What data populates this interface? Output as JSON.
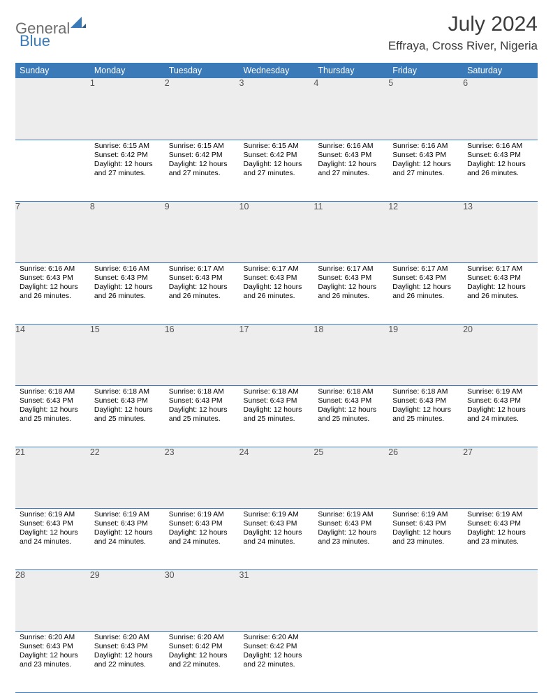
{
  "logo": {
    "text1": "General",
    "text2": "Blue"
  },
  "title": "July 2024",
  "location": "Effraya, Cross River, Nigeria",
  "colors": {
    "header_bg": "#3a7ab8",
    "header_fg": "#ffffff",
    "daynum_bg": "#ededed",
    "border": "#3a7ab8"
  },
  "weekdays": [
    "Sunday",
    "Monday",
    "Tuesday",
    "Wednesday",
    "Thursday",
    "Friday",
    "Saturday"
  ],
  "weeks": [
    {
      "nums": [
        "",
        "1",
        "2",
        "3",
        "4",
        "5",
        "6"
      ],
      "cells": [
        null,
        {
          "sunrise": "Sunrise: 6:15 AM",
          "sunset": "Sunset: 6:42 PM",
          "daylight": "Daylight: 12 hours and 27 minutes."
        },
        {
          "sunrise": "Sunrise: 6:15 AM",
          "sunset": "Sunset: 6:42 PM",
          "daylight": "Daylight: 12 hours and 27 minutes."
        },
        {
          "sunrise": "Sunrise: 6:15 AM",
          "sunset": "Sunset: 6:42 PM",
          "daylight": "Daylight: 12 hours and 27 minutes."
        },
        {
          "sunrise": "Sunrise: 6:16 AM",
          "sunset": "Sunset: 6:43 PM",
          "daylight": "Daylight: 12 hours and 27 minutes."
        },
        {
          "sunrise": "Sunrise: 6:16 AM",
          "sunset": "Sunset: 6:43 PM",
          "daylight": "Daylight: 12 hours and 27 minutes."
        },
        {
          "sunrise": "Sunrise: 6:16 AM",
          "sunset": "Sunset: 6:43 PM",
          "daylight": "Daylight: 12 hours and 26 minutes."
        }
      ]
    },
    {
      "nums": [
        "7",
        "8",
        "9",
        "10",
        "11",
        "12",
        "13"
      ],
      "cells": [
        {
          "sunrise": "Sunrise: 6:16 AM",
          "sunset": "Sunset: 6:43 PM",
          "daylight": "Daylight: 12 hours and 26 minutes."
        },
        {
          "sunrise": "Sunrise: 6:16 AM",
          "sunset": "Sunset: 6:43 PM",
          "daylight": "Daylight: 12 hours and 26 minutes."
        },
        {
          "sunrise": "Sunrise: 6:17 AM",
          "sunset": "Sunset: 6:43 PM",
          "daylight": "Daylight: 12 hours and 26 minutes."
        },
        {
          "sunrise": "Sunrise: 6:17 AM",
          "sunset": "Sunset: 6:43 PM",
          "daylight": "Daylight: 12 hours and 26 minutes."
        },
        {
          "sunrise": "Sunrise: 6:17 AM",
          "sunset": "Sunset: 6:43 PM",
          "daylight": "Daylight: 12 hours and 26 minutes."
        },
        {
          "sunrise": "Sunrise: 6:17 AM",
          "sunset": "Sunset: 6:43 PM",
          "daylight": "Daylight: 12 hours and 26 minutes."
        },
        {
          "sunrise": "Sunrise: 6:17 AM",
          "sunset": "Sunset: 6:43 PM",
          "daylight": "Daylight: 12 hours and 26 minutes."
        }
      ]
    },
    {
      "nums": [
        "14",
        "15",
        "16",
        "17",
        "18",
        "19",
        "20"
      ],
      "cells": [
        {
          "sunrise": "Sunrise: 6:18 AM",
          "sunset": "Sunset: 6:43 PM",
          "daylight": "Daylight: 12 hours and 25 minutes."
        },
        {
          "sunrise": "Sunrise: 6:18 AM",
          "sunset": "Sunset: 6:43 PM",
          "daylight": "Daylight: 12 hours and 25 minutes."
        },
        {
          "sunrise": "Sunrise: 6:18 AM",
          "sunset": "Sunset: 6:43 PM",
          "daylight": "Daylight: 12 hours and 25 minutes."
        },
        {
          "sunrise": "Sunrise: 6:18 AM",
          "sunset": "Sunset: 6:43 PM",
          "daylight": "Daylight: 12 hours and 25 minutes."
        },
        {
          "sunrise": "Sunrise: 6:18 AM",
          "sunset": "Sunset: 6:43 PM",
          "daylight": "Daylight: 12 hours and 25 minutes."
        },
        {
          "sunrise": "Sunrise: 6:18 AM",
          "sunset": "Sunset: 6:43 PM",
          "daylight": "Daylight: 12 hours and 25 minutes."
        },
        {
          "sunrise": "Sunrise: 6:19 AM",
          "sunset": "Sunset: 6:43 PM",
          "daylight": "Daylight: 12 hours and 24 minutes."
        }
      ]
    },
    {
      "nums": [
        "21",
        "22",
        "23",
        "24",
        "25",
        "26",
        "27"
      ],
      "cells": [
        {
          "sunrise": "Sunrise: 6:19 AM",
          "sunset": "Sunset: 6:43 PM",
          "daylight": "Daylight: 12 hours and 24 minutes."
        },
        {
          "sunrise": "Sunrise: 6:19 AM",
          "sunset": "Sunset: 6:43 PM",
          "daylight": "Daylight: 12 hours and 24 minutes."
        },
        {
          "sunrise": "Sunrise: 6:19 AM",
          "sunset": "Sunset: 6:43 PM",
          "daylight": "Daylight: 12 hours and 24 minutes."
        },
        {
          "sunrise": "Sunrise: 6:19 AM",
          "sunset": "Sunset: 6:43 PM",
          "daylight": "Daylight: 12 hours and 24 minutes."
        },
        {
          "sunrise": "Sunrise: 6:19 AM",
          "sunset": "Sunset: 6:43 PM",
          "daylight": "Daylight: 12 hours and 23 minutes."
        },
        {
          "sunrise": "Sunrise: 6:19 AM",
          "sunset": "Sunset: 6:43 PM",
          "daylight": "Daylight: 12 hours and 23 minutes."
        },
        {
          "sunrise": "Sunrise: 6:19 AM",
          "sunset": "Sunset: 6:43 PM",
          "daylight": "Daylight: 12 hours and 23 minutes."
        }
      ]
    },
    {
      "nums": [
        "28",
        "29",
        "30",
        "31",
        "",
        "",
        ""
      ],
      "cells": [
        {
          "sunrise": "Sunrise: 6:20 AM",
          "sunset": "Sunset: 6:43 PM",
          "daylight": "Daylight: 12 hours and 23 minutes."
        },
        {
          "sunrise": "Sunrise: 6:20 AM",
          "sunset": "Sunset: 6:43 PM",
          "daylight": "Daylight: 12 hours and 22 minutes."
        },
        {
          "sunrise": "Sunrise: 6:20 AM",
          "sunset": "Sunset: 6:42 PM",
          "daylight": "Daylight: 12 hours and 22 minutes."
        },
        {
          "sunrise": "Sunrise: 6:20 AM",
          "sunset": "Sunset: 6:42 PM",
          "daylight": "Daylight: 12 hours and 22 minutes."
        },
        null,
        null,
        null
      ]
    }
  ]
}
